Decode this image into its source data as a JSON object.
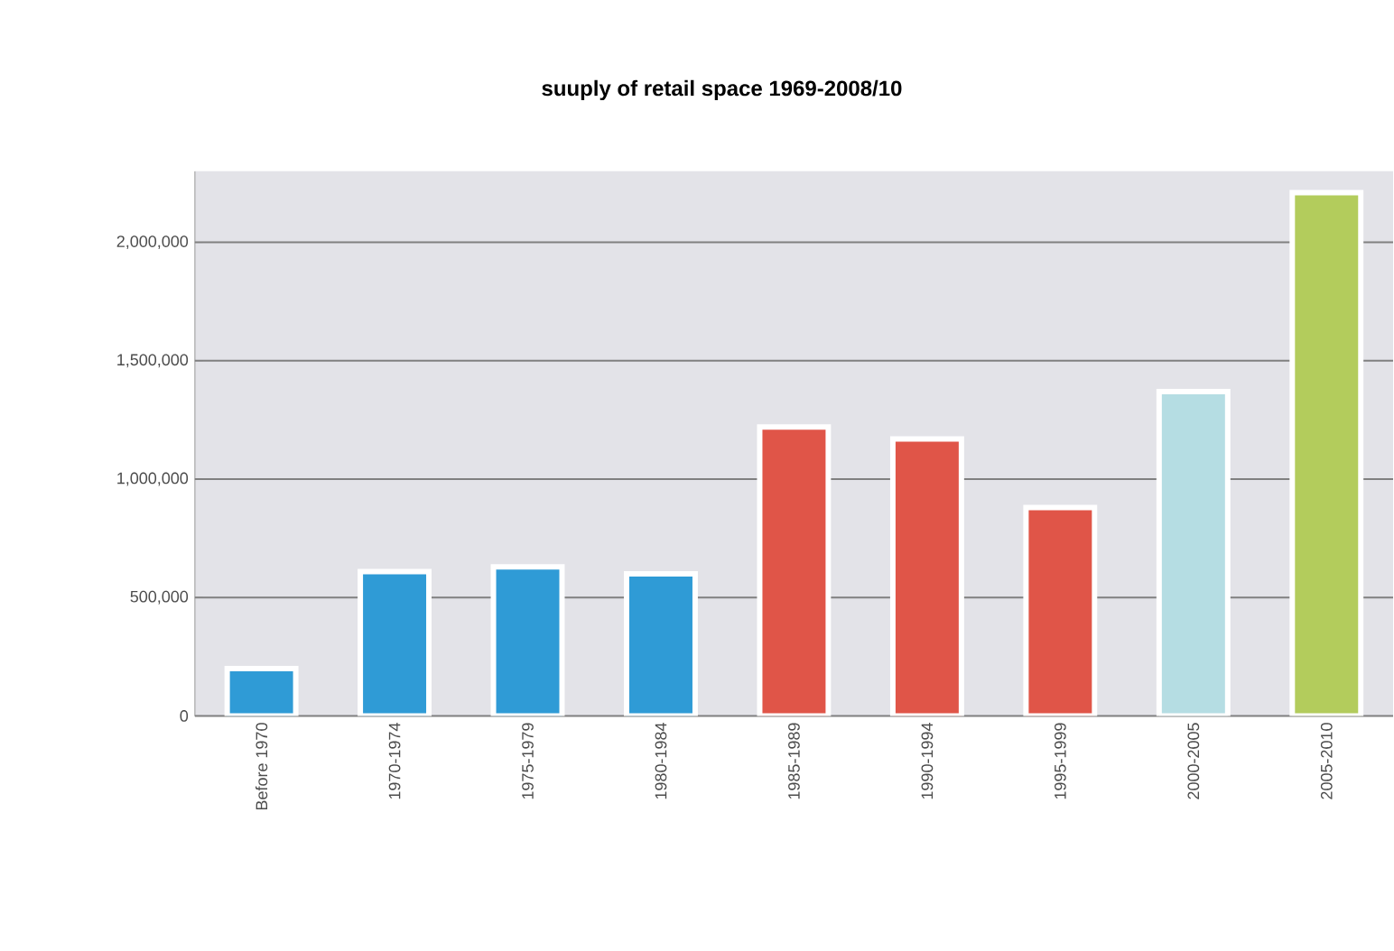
{
  "chart_data": {
    "type": "bar",
    "title": "suuply of retail space 1969-2008/10",
    "categories": [
      "Before 1970",
      "1970-1974",
      "1975-1979",
      "1980-1984",
      "1985-1989",
      "1990-1994",
      "1995-1999",
      "2000-2005",
      "2005-2010"
    ],
    "values": [
      200000,
      610000,
      630000,
      600000,
      1220000,
      1170000,
      880000,
      1370000,
      2210000
    ],
    "colors": [
      "#2f9bd6",
      "#2f9bd6",
      "#2f9bd6",
      "#2f9bd6",
      "#e05548",
      "#e05548",
      "#e05548",
      "#b5dde3",
      "#b3cc5c"
    ],
    "ylim": [
      0,
      2300000
    ],
    "yticks": [
      {
        "value": 0,
        "label": "0"
      },
      {
        "value": 500000,
        "label": "500,000"
      },
      {
        "value": 1000000,
        "label": "1,000,000"
      },
      {
        "value": 1500000,
        "label": "1,500,000"
      },
      {
        "value": 2000000,
        "label": "2,000,000"
      }
    ],
    "grid": "y"
  }
}
